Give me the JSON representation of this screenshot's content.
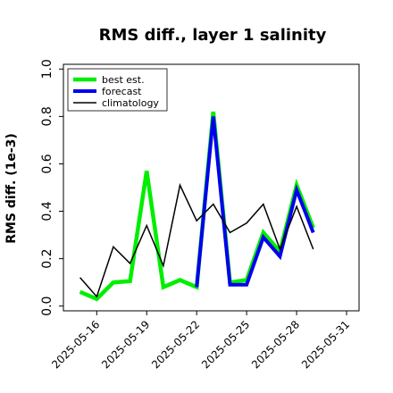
{
  "chart_data": {
    "type": "line",
    "title": "RMS diff., layer 1 salinity",
    "ylabel": "RMS diff. (1e-3)",
    "xlabel": "",
    "ylim": [
      -0.02,
      1.02
    ],
    "yticks": [
      0.0,
      0.2,
      0.4,
      0.6,
      0.8,
      1.0
    ],
    "ytick_labels": [
      "0.0",
      "0.2",
      "0.4",
      "0.6",
      "0.8",
      "1.0"
    ],
    "xlim": [
      "2025-05-14",
      "2025-05-31T18:00"
    ],
    "xticks": [
      "2025-05-16",
      "2025-05-19",
      "2025-05-22",
      "2025-05-25",
      "2025-05-28",
      "2025-05-31"
    ],
    "highlight_tick": "2025-05-22",
    "highlight_color": "#228b22",
    "grid": false,
    "legend_position": "top-left",
    "series": [
      {
        "name": "best est.",
        "color": "#00ee00",
        "x": [
          "2025-05-15",
          "2025-05-16",
          "2025-05-17",
          "2025-05-18",
          "2025-05-19",
          "2025-05-20",
          "2025-05-21",
          "2025-05-22",
          "2025-05-23",
          "2025-05-24",
          "2025-05-25",
          "2025-05-26",
          "2025-05-27",
          "2025-05-28",
          "2025-05-29"
        ],
        "values": [
          0.06,
          0.03,
          0.1,
          0.105,
          0.57,
          0.08,
          0.11,
          0.08,
          0.82,
          0.1,
          0.11,
          0.31,
          0.23,
          0.51,
          0.33
        ]
      },
      {
        "name": "forecast",
        "color": "#0000ee",
        "x": [
          "2025-05-22",
          "2025-05-23",
          "2025-05-24",
          "2025-05-25",
          "2025-05-26",
          "2025-05-27",
          "2025-05-28",
          "2025-05-29"
        ],
        "values": [
          0.08,
          0.8,
          0.09,
          0.09,
          0.29,
          0.21,
          0.49,
          0.31
        ]
      },
      {
        "name": "climatology",
        "color": "#000000",
        "x": [
          "2025-05-15",
          "2025-05-16",
          "2025-05-17",
          "2025-05-18",
          "2025-05-19",
          "2025-05-20",
          "2025-05-21",
          "2025-05-22",
          "2025-05-23",
          "2025-05-24",
          "2025-05-25",
          "2025-05-26",
          "2025-05-27",
          "2025-05-28",
          "2025-05-29"
        ],
        "values": [
          0.12,
          0.04,
          0.25,
          0.18,
          0.34,
          0.17,
          0.51,
          0.36,
          0.43,
          0.31,
          0.35,
          0.43,
          0.24,
          0.42,
          0.24
        ]
      }
    ]
  }
}
